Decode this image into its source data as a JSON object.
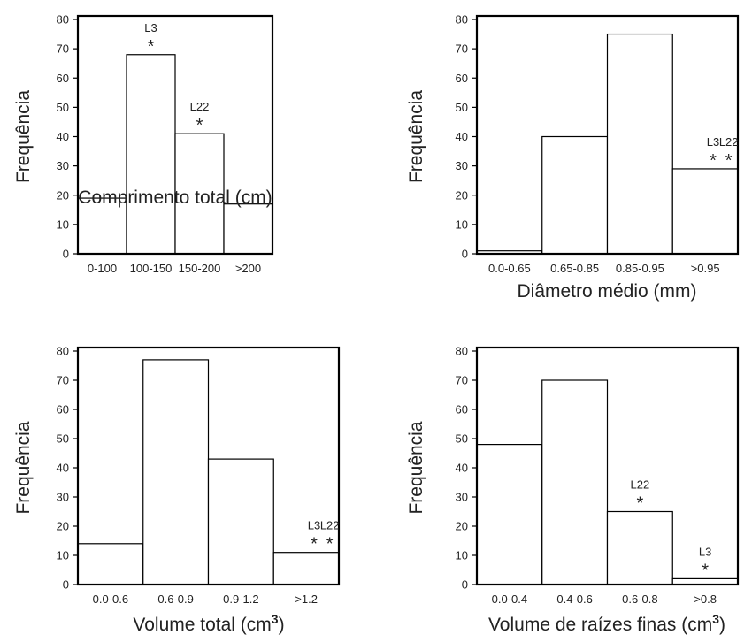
{
  "chart_data": [
    {
      "type": "bar",
      "ylabel": "Frequência",
      "xlabel": "Comprimento total (cm)",
      "xlabel_sup": "",
      "ylim": [
        0,
        80
      ],
      "yticks": [
        "0",
        "10",
        "20",
        "30",
        "40",
        "50",
        "60",
        "70",
        "80"
      ],
      "categories": [
        "0-100",
        "100-150",
        "150-200",
        ">200"
      ],
      "values": [
        19,
        68,
        41,
        17
      ],
      "annotations": [
        {
          "category_index": 1,
          "labels": [
            "L3"
          ],
          "marker": "*"
        },
        {
          "category_index": 2,
          "labels": [
            "L22"
          ],
          "marker": "*"
        }
      ]
    },
    {
      "type": "bar",
      "ylabel": "Frequência",
      "xlabel": "Diâmetro médio (mm)",
      "xlabel_sup": "",
      "ylim": [
        0,
        80
      ],
      "yticks": [
        "0",
        "10",
        "20",
        "30",
        "40",
        "50",
        "60",
        "70",
        "80"
      ],
      "categories": [
        "0.0-0.65",
        "0.65-0.85",
        "0.85-0.95",
        ">0.95"
      ],
      "values": [
        1,
        40,
        75,
        29
      ],
      "annotations": [
        {
          "category_index": 3,
          "labels": [
            "L3",
            "L22"
          ],
          "marker": "*"
        }
      ]
    },
    {
      "type": "bar",
      "ylabel": "Frequência",
      "xlabel": "Volume total (cm",
      "xlabel_sup": "3",
      "xlabel_end": ")",
      "ylim": [
        0,
        80
      ],
      "yticks": [
        "0",
        "10",
        "20",
        "30",
        "40",
        "50",
        "60",
        "70",
        "80"
      ],
      "categories": [
        "0.0-0.6",
        "0.6-0.9",
        "0.9-1.2",
        ">1.2"
      ],
      "values": [
        14,
        77,
        43,
        11
      ],
      "annotations": [
        {
          "category_index": 3,
          "labels": [
            "L3",
            "L22"
          ],
          "marker": "*"
        }
      ]
    },
    {
      "type": "bar",
      "ylabel": "Frequência",
      "xlabel": "Volume de raízes finas (cm",
      "xlabel_sup": "3",
      "xlabel_end": ")",
      "ylim": [
        0,
        80
      ],
      "yticks": [
        "0",
        "10",
        "20",
        "30",
        "40",
        "50",
        "60",
        "70",
        "80"
      ],
      "categories": [
        "0.0-0.4",
        "0.4-0.6",
        "0.6-0.8",
        ">0.8"
      ],
      "values": [
        48,
        70,
        25,
        2
      ],
      "annotations": [
        {
          "category_index": 2,
          "labels": [
            "L22"
          ],
          "marker": "*"
        },
        {
          "category_index": 3,
          "labels": [
            "L3"
          ],
          "marker": "*"
        }
      ]
    }
  ]
}
